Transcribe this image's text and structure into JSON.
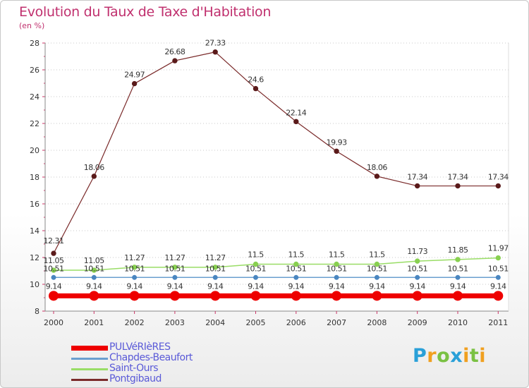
{
  "title": "Evolution du Taux de Taxe d'Habitation",
  "unit_label": "(en %)",
  "chart_data": {
    "type": "line",
    "title": "Evolution du Taux de Taxe d'Habitation",
    "ylabel": "(en %)",
    "xlabel": "",
    "categories": [
      "2000",
      "2001",
      "2002",
      "2003",
      "2004",
      "2005",
      "2006",
      "2007",
      "2008",
      "2009",
      "2010",
      "2011"
    ],
    "ylim": [
      8,
      28
    ],
    "yticks": [
      8,
      10,
      12,
      14,
      16,
      18,
      20,
      22,
      24,
      26,
      28
    ],
    "grid": "horizontal-dotted",
    "legend": "bottom-left",
    "series": [
      {
        "name": "PULVéRIèRES",
        "color": "#ee0000",
        "labels": [
          "9.14",
          "9.14",
          "9.14",
          "9.14",
          "9.14",
          "9.14",
          "9.14",
          "9.14",
          "9.14",
          "9.14",
          "9.14",
          "9.14"
        ],
        "values": [
          9.14,
          9.14,
          9.14,
          9.14,
          9.14,
          9.14,
          9.14,
          9.14,
          9.14,
          9.14,
          9.14,
          9.14
        ]
      },
      {
        "name": "Chapdes-Beaufort",
        "color": "#6a9fcf",
        "labels": [
          "10.51",
          "10.51",
          "10.51",
          "10.51",
          "10.51",
          "10.51",
          "10.51",
          "10.51",
          "10.51",
          "10.51",
          "10.51",
          "10.51"
        ],
        "values": [
          10.51,
          10.51,
          10.51,
          10.51,
          10.51,
          10.51,
          10.51,
          10.51,
          10.51,
          10.51,
          10.51,
          10.51
        ]
      },
      {
        "name": "Saint-Ours",
        "color": "#99dd66",
        "labels": [
          "11.05",
          "11.05",
          "11.27",
          "11.27",
          "11.27",
          "11.5",
          "11.5",
          "11.5",
          "11.5",
          "11.73",
          "11.85",
          "11.97"
        ],
        "values": [
          11.05,
          11.05,
          11.27,
          11.27,
          11.27,
          11.5,
          11.5,
          11.5,
          11.5,
          11.73,
          11.85,
          11.97
        ]
      },
      {
        "name": "Pontgibaud",
        "color": "#7a2a2a",
        "labels": [
          "12.31",
          "18.06",
          "24.97",
          "26.68",
          "27.33",
          "24.6",
          "22.14",
          "19.93",
          "18.06",
          "17.34",
          "17.34",
          "17.34"
        ],
        "values": [
          12.31,
          18.06,
          24.97,
          26.68,
          27.33,
          24.6,
          22.14,
          19.93,
          18.06,
          17.34,
          17.34,
          17.34
        ]
      }
    ]
  },
  "legend": [
    {
      "label": "PULVéRIèRES",
      "color": "#ee0000"
    },
    {
      "label": "Chapdes-Beaufort",
      "color": "#6a9fcf"
    },
    {
      "label": "Saint-Ours",
      "color": "#99dd66"
    },
    {
      "label": "Pontgibaud",
      "color": "#7a2a2a"
    }
  ],
  "logo": {
    "p": "P",
    "r": "r",
    "o": "o",
    "x": "x",
    "i": "i",
    "t": "t",
    "i2": "i"
  }
}
